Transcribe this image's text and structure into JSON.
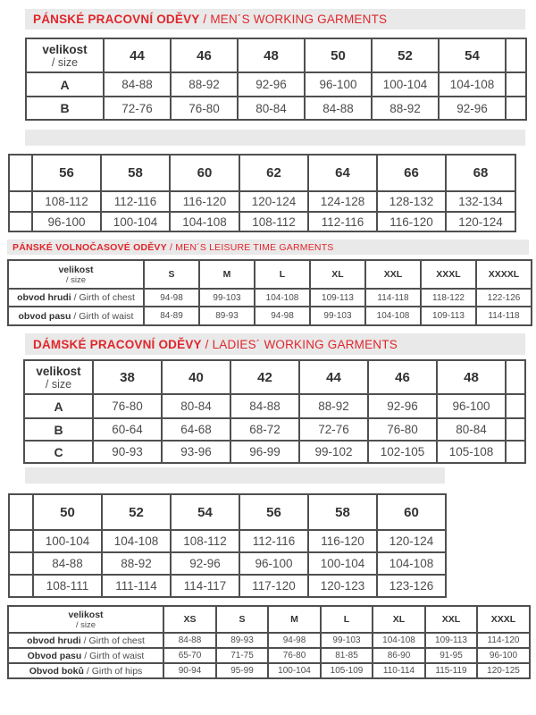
{
  "colors": {
    "accent_red": "#e0262b",
    "bar_background": "#e9e9e9",
    "table_border": "#4f4f4f",
    "text_gray": "#4d4d4d"
  },
  "sections": {
    "mens_working": {
      "title_cz": "PÁNSKÉ PRACOVNÍ ODĚVY",
      "title_en": " / MEN´S WORKING GARMENTS",
      "table1": {
        "corner": {
          "bold": "velikost",
          "sub": "/ size"
        },
        "columns": [
          "44",
          "46",
          "48",
          "50",
          "52",
          "54"
        ],
        "rows": [
          {
            "label_bold": "A",
            "values": [
              "84-88",
              "88-92",
              "92-96",
              "96-100",
              "100-104",
              "104-108"
            ]
          },
          {
            "label_bold": "B",
            "values": [
              "72-76",
              "76-80",
              "80-84",
              "84-88",
              "88-92",
              "92-96"
            ]
          }
        ]
      },
      "table2": {
        "columns": [
          "56",
          "58",
          "60",
          "62",
          "64",
          "66",
          "68"
        ],
        "rows": [
          {
            "values": [
              "108-112",
              "112-116",
              "116-120",
              "120-124",
              "124-128",
              "128-132",
              "132-134"
            ]
          },
          {
            "values": [
              "96-100",
              "100-104",
              "104-108",
              "108-112",
              "112-116",
              "116-120",
              "120-124"
            ]
          }
        ]
      }
    },
    "mens_leisure": {
      "title_cz": "PÁNSKÉ VOLNOČASOVÉ ODĚVY",
      "title_en": " / MEN´S LEISURE TIME GARMENTS",
      "table": {
        "corner": {
          "bold": "velikost",
          "sub": "/ size"
        },
        "columns": [
          "S",
          "M",
          "L",
          "XL",
          "XXL",
          "XXXL",
          "XXXXL"
        ],
        "rows": [
          {
            "label_bold": "obvod hrudi",
            "label_rest": " / Girth of chest",
            "values": [
              "94-98",
              "99-103",
              "104-108",
              "109-113",
              "114-118",
              "118-122",
              "122-126"
            ]
          },
          {
            "label_bold": "obvod pasu",
            "label_rest": " / Girth of waist",
            "values": [
              "84-89",
              "89-93",
              "94-98",
              "99-103",
              "104-108",
              "109-113",
              "114-118"
            ]
          }
        ]
      }
    },
    "ladies_working": {
      "title_cz": "DÁMSKÉ PRACOVNÍ ODĚVY",
      "title_en": " / LADIES´ WORKING GARMENTS",
      "table1": {
        "corner": {
          "bold": "velikost",
          "sub": "/ size"
        },
        "columns": [
          "38",
          "40",
          "42",
          "44",
          "46",
          "48"
        ],
        "rows": [
          {
            "label_bold": "A",
            "values": [
              "76-80",
              "80-84",
              "84-88",
              "88-92",
              "92-96",
              "96-100"
            ]
          },
          {
            "label_bold": "B",
            "values": [
              "60-64",
              "64-68",
              "68-72",
              "72-76",
              "76-80",
              "80-84"
            ]
          },
          {
            "label_bold": "C",
            "values": [
              "90-93",
              "93-96",
              "96-99",
              "99-102",
              "102-105",
              "105-108"
            ]
          }
        ]
      },
      "table2": {
        "columns": [
          "50",
          "52",
          "54",
          "56",
          "58",
          "60"
        ],
        "rows": [
          {
            "values": [
              "100-104",
              "104-108",
              "108-112",
              "112-116",
              "116-120",
              "120-124"
            ]
          },
          {
            "values": [
              "84-88",
              "88-92",
              "92-96",
              "96-100",
              "100-104",
              "104-108"
            ]
          },
          {
            "values": [
              "108-111",
              "111-114",
              "114-117",
              "117-120",
              "120-123",
              "123-126"
            ]
          }
        ]
      }
    },
    "bottom_sizes": {
      "table": {
        "corner": {
          "bold": "velikost",
          "sub": "/ size"
        },
        "columns": [
          "XS",
          "S",
          "M",
          "L",
          "XL",
          "XXL",
          "XXXL"
        ],
        "rows": [
          {
            "label_bold": "obvod hrudi",
            "label_rest": " / Girth of chest",
            "values": [
              "84-88",
              "89-93",
              "94-98",
              "99-103",
              "104-108",
              "109-113",
              "114-120"
            ]
          },
          {
            "label_bold": "Obvod pasu",
            "label_rest": " / Girth of waist",
            "values": [
              "65-70",
              "71-75",
              "76-80",
              "81-85",
              "86-90",
              "91-95",
              "96-100"
            ]
          },
          {
            "label_bold": "Obvod boků",
            "label_rest": " / Girth of hips",
            "values": [
              "90-94",
              "95-99",
              "100-104",
              "105-109",
              "110-114",
              "115-119",
              "120-125"
            ]
          }
        ]
      }
    }
  }
}
